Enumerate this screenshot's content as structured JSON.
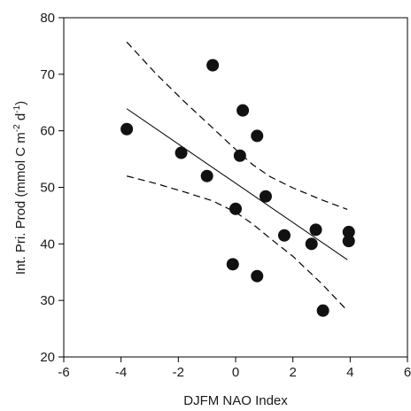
{
  "chart_data": {
    "type": "scatter",
    "xlabel": "DJFM NAO Index",
    "ylabel": {
      "prefix": "Int. Pri. Prod (mmol C m",
      "sup1": "-2",
      "mid": " d",
      "sup2": "-1",
      "suffix": ")"
    },
    "xlim": [
      -6,
      6
    ],
    "ylim": [
      20,
      80
    ],
    "xticks": [
      -6,
      -4,
      -2,
      0,
      2,
      4,
      6
    ],
    "yticks": [
      20,
      30,
      40,
      50,
      60,
      70,
      80
    ],
    "grid": false,
    "points": [
      {
        "x": -3.8,
        "y": 60.3
      },
      {
        "x": -1.9,
        "y": 56.1
      },
      {
        "x": -1.0,
        "y": 52.0
      },
      {
        "x": -0.8,
        "y": 71.6
      },
      {
        "x": -0.1,
        "y": 36.4
      },
      {
        "x": 0.0,
        "y": 46.2
      },
      {
        "x": 0.15,
        "y": 55.6
      },
      {
        "x": 0.25,
        "y": 63.6
      },
      {
        "x": 0.75,
        "y": 59.1
      },
      {
        "x": 0.75,
        "y": 34.3
      },
      {
        "x": 1.05,
        "y": 48.4
      },
      {
        "x": 1.7,
        "y": 41.5
      },
      {
        "x": 2.65,
        "y": 40.0
      },
      {
        "x": 2.8,
        "y": 42.5
      },
      {
        "x": 3.05,
        "y": 28.2
      },
      {
        "x": 3.95,
        "y": 42.1
      },
      {
        "x": 3.95,
        "y": 40.5
      }
    ],
    "regression_line": {
      "x": [
        -3.8,
        3.9
      ],
      "y": [
        63.9,
        37.2
      ]
    },
    "confidence_bands": {
      "upper": {
        "x": [
          -3.8,
          -2.8,
          -1.8,
          -0.8,
          0.0,
          0.6,
          1.2,
          2.0,
          3.0,
          3.9
        ],
        "y": [
          75.7,
          70.2,
          65.2,
          60.5,
          56.7,
          54.0,
          51.9,
          49.9,
          47.8,
          46.1
        ]
      },
      "lower": {
        "x": [
          -3.8,
          -2.8,
          -1.8,
          -0.8,
          0.0,
          0.6,
          1.2,
          2.0,
          3.0,
          3.9
        ],
        "y": [
          52.0,
          50.7,
          49.2,
          47.6,
          45.6,
          43.5,
          41.0,
          37.8,
          33.0,
          28.2
        ]
      }
    }
  }
}
